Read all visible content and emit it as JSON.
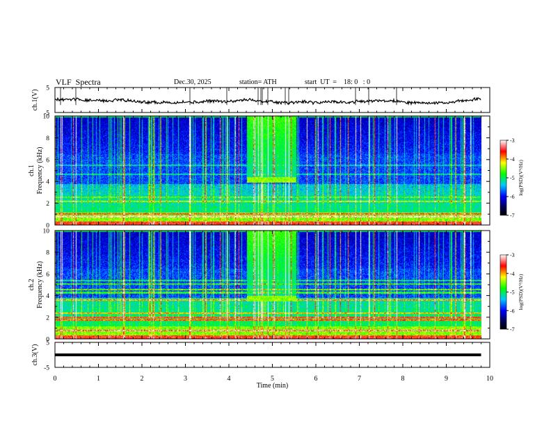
{
  "header": {
    "title": "VLF  Spectra",
    "date": "Dec.30, 2025",
    "station": "station= ATH",
    "start": "start  UT  =    18: 0   : 0"
  },
  "chart_data": {
    "type": "heatmap",
    "title": "VLF  Spectra",
    "xlabel": "Time  (min)",
    "xlim": [
      0,
      10
    ],
    "xticks": [
      "0",
      "1",
      "2",
      "3",
      "4",
      "5",
      "6",
      "7",
      "8",
      "9",
      "10"
    ],
    "data_end_min": 9.8,
    "panels": [
      {
        "name": "ch1-voltage",
        "type": "line",
        "ylabel": "ch.1(V)",
        "ylim": [
          -5,
          5
        ],
        "yticks": [
          "5",
          "-5"
        ]
      },
      {
        "name": "ch1-spectrogram",
        "type": "heatmap",
        "ylabel": "ch.1\nFrequency  (kHz)",
        "ylabel_top": "ch.1",
        "ylabel_main": "Frequency  (kHz)",
        "ylim": [
          0,
          10
        ],
        "yticks": [
          "0",
          "2",
          "4",
          "6",
          "8",
          "10"
        ],
        "burst_interval_min": [
          4.4,
          5.55
        ],
        "burst_band_khz": [
          3.9,
          4.4
        ],
        "colorbar": {
          "label": "log(PSD)(V²/Hz)",
          "range": [
            -7,
            -3
          ],
          "ticks": [
            "-3",
            "-4",
            "-5",
            "-6",
            "-7"
          ]
        }
      },
      {
        "name": "ch2-spectrogram",
        "type": "heatmap",
        "ylabel": "ch.2\nFrequency  (kHz)",
        "ylabel_top": "ch.2",
        "ylabel_main": "Frequency  (kHz)",
        "ylim": [
          0,
          10
        ],
        "yticks": [
          "0",
          "2",
          "4",
          "6",
          "8",
          "10"
        ],
        "burst_interval_min": [
          4.4,
          5.55
        ],
        "burst_band_khz": [
          3.5,
          4.0
        ],
        "colorbar": {
          "label": "log(PSD)(V²/Hz)",
          "range": [
            -7,
            -3
          ],
          "ticks": [
            "-3",
            "-4",
            "-5",
            "-6",
            "-7"
          ]
        }
      },
      {
        "name": "ch3-voltage",
        "type": "line",
        "ylabel": "ch.3(V)",
        "ylim": [
          -5,
          5
        ],
        "yticks": [
          "5",
          "-5"
        ],
        "level_v": 0
      }
    ]
  }
}
